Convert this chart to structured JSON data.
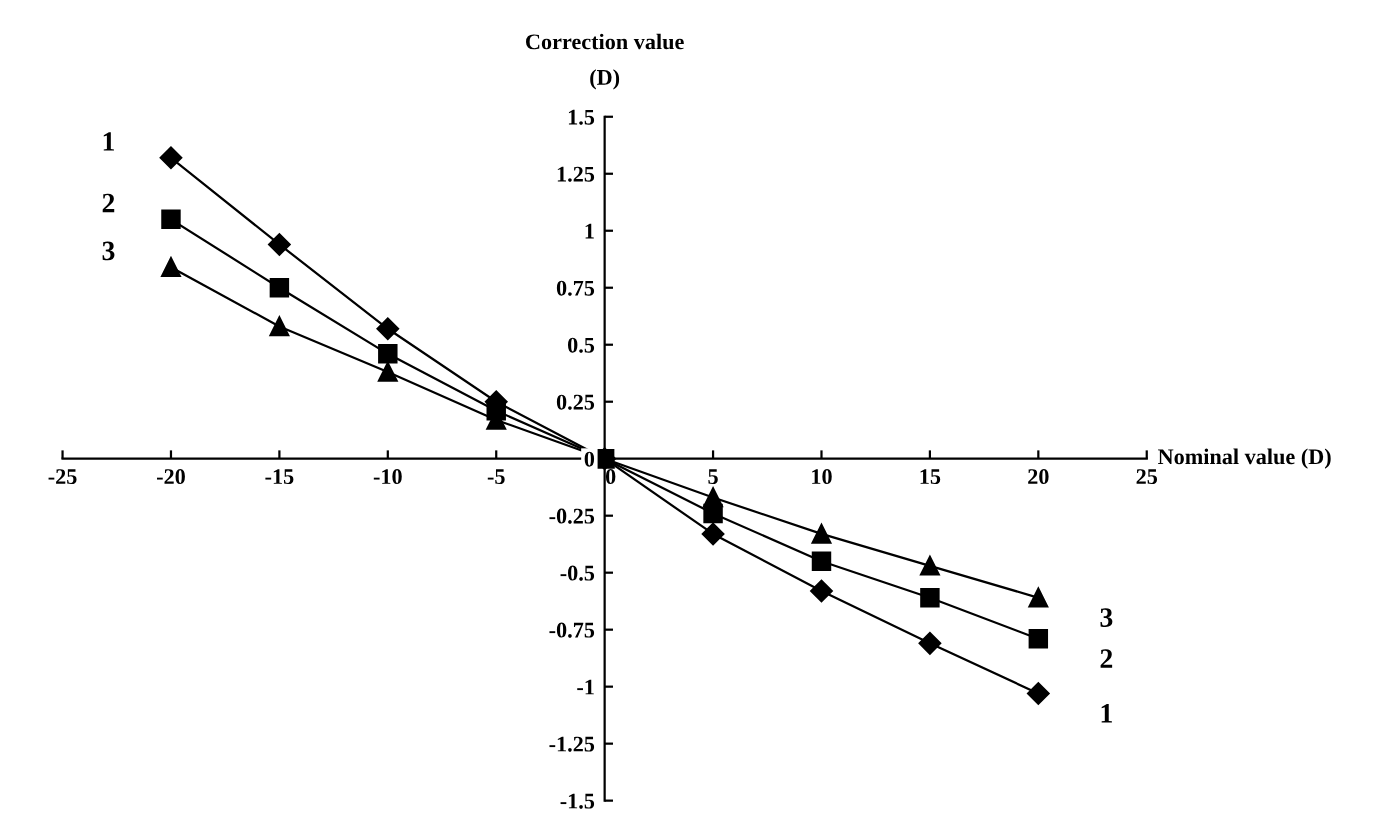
{
  "chart_data": {
    "type": "line",
    "xlabel": "Nominal value (D)",
    "ylabel": "Correction value\n(D)",
    "x": [
      -20,
      -15,
      -10,
      -5,
      0,
      5,
      10,
      15,
      20
    ],
    "series": [
      {
        "name": "1",
        "color": "#000000",
        "marker": "diamond",
        "values": [
          1.32,
          0.94,
          0.57,
          0.25,
          0,
          -0.33,
          -0.58,
          -0.81,
          -1.03
        ]
      },
      {
        "name": "2",
        "color": "#000000",
        "marker": "square",
        "values": [
          1.05,
          0.75,
          0.46,
          0.21,
          0,
          -0.24,
          -0.45,
          -0.61,
          -0.79
        ]
      },
      {
        "name": "3",
        "color": "#000000",
        "marker": "triangle",
        "values": [
          0.84,
          0.58,
          0.38,
          0.17,
          0,
          -0.17,
          -0.33,
          -0.47,
          -0.61
        ]
      }
    ],
    "xlim": [
      -25,
      25
    ],
    "xticks": [
      -25,
      -20,
      -15,
      -10,
      -5,
      0,
      5,
      10,
      15,
      20,
      25
    ],
    "ylim": [
      -1.5,
      1.5
    ],
    "yticks": [
      -1.5,
      -1.25,
      -1,
      -0.75,
      -0.5,
      -0.25,
      0,
      0.25,
      0.5,
      0.75,
      1,
      1.25,
      1.5
    ],
    "grid": false,
    "legend": false,
    "line_style": "solid"
  }
}
